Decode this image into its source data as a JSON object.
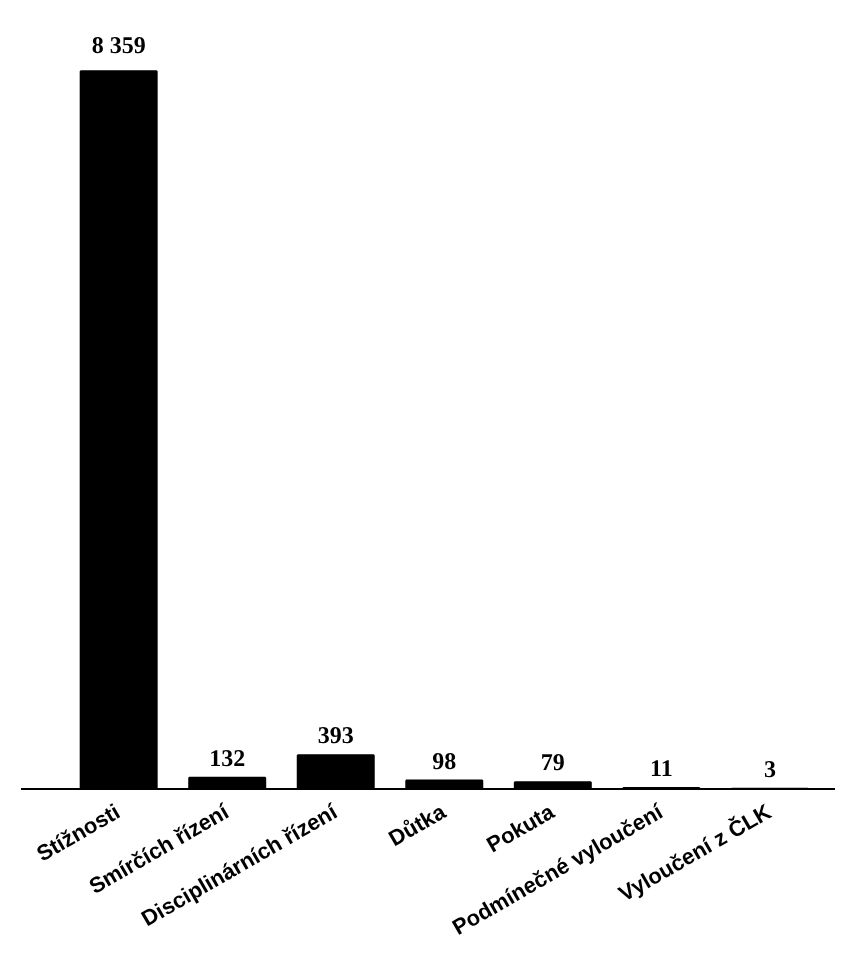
{
  "chart_data": {
    "type": "bar",
    "categories": [
      "Stížnosti",
      "Smírčích řízení",
      "Disciplinárních řízení",
      "Důtka",
      "Pokuta",
      "Podmínečné vyloučení",
      "Vyloučení z ČLK"
    ],
    "values": [
      8359,
      132,
      393,
      98,
      79,
      11,
      3
    ],
    "value_labels": [
      "8 359",
      "132",
      "393",
      "98",
      "79",
      "11",
      "3"
    ],
    "color": "#000000",
    "grid": false,
    "tick_labels": "x"
  }
}
